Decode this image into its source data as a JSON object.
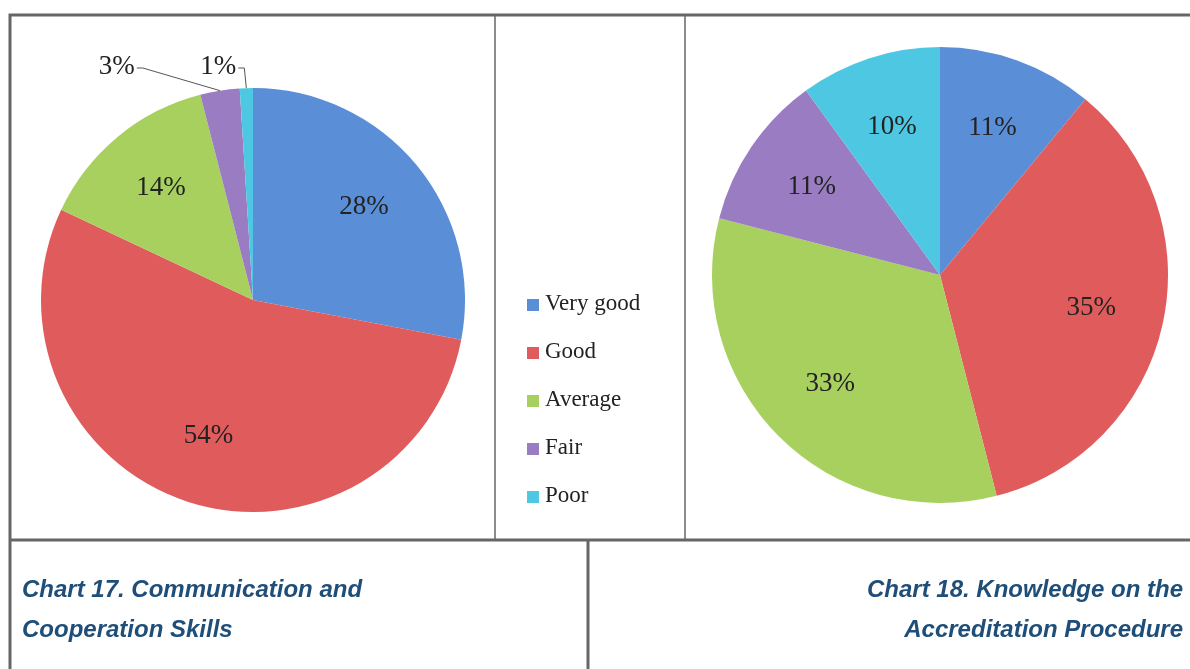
{
  "chart_data": [
    {
      "type": "pie",
      "title": "Chart 17. Communication and Cooperation Skills",
      "categories": [
        "Very good",
        "Good",
        "Average",
        "Fair",
        "Poor"
      ],
      "values": [
        28,
        54,
        14,
        3,
        1
      ],
      "value_labels": [
        "28%",
        "54%",
        "14%",
        "3%",
        "1%"
      ],
      "colors": [
        "#5a8fd8",
        "#e05c5c",
        "#a8d05e",
        "#9a7cc2",
        "#4ec8e2"
      ],
      "legend": "right"
    },
    {
      "type": "pie",
      "title": "Chart 18. Knowledge on the Accreditation Procedure",
      "categories": [
        null,
        null,
        null,
        null,
        null
      ],
      "values": [
        11,
        35,
        33,
        11,
        10
      ],
      "value_labels": [
        "11%",
        "35%",
        "33%",
        "11%",
        "10%"
      ],
      "colors": [
        "#5a8fd8",
        "#e05c5c",
        "#a8d05e",
        "#9a7cc2",
        "#4ec8e2"
      ]
    }
  ]
}
